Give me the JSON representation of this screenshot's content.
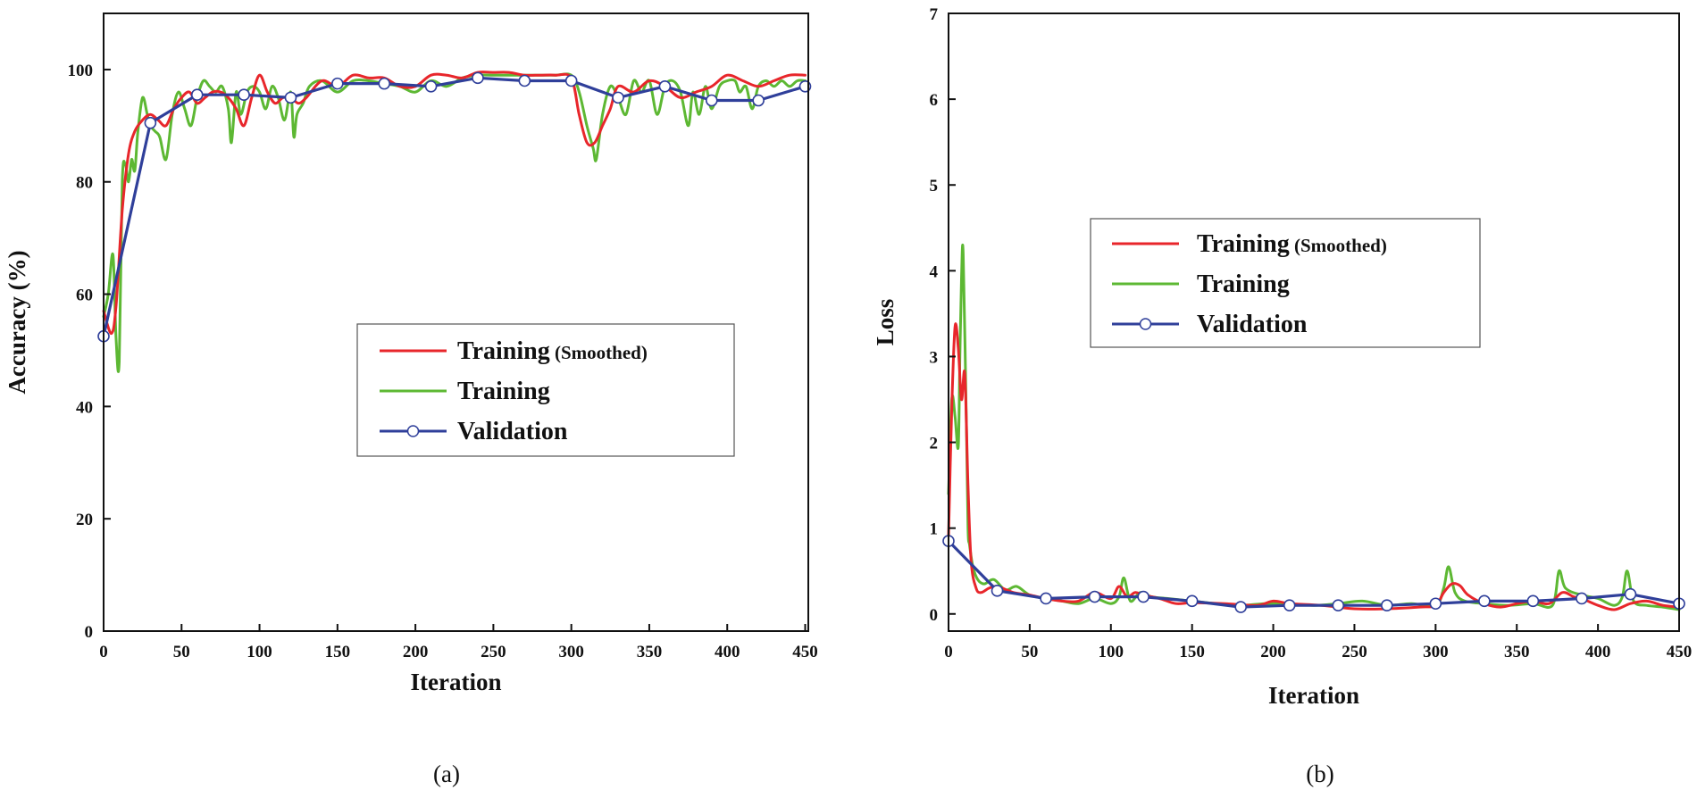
{
  "colors": {
    "smoothed": "#e8262b",
    "training": "#5db833",
    "validation": "#2f3f9a",
    "marker_fill": "#ffffff",
    "axis": "#111111"
  },
  "chart_data": [
    {
      "id": "a",
      "type": "line",
      "panel_label": "(a)",
      "xlabel": "Iteration",
      "ylabel": "Accuracy (%)",
      "xlim": [
        0,
        452
      ],
      "ylim": [
        0,
        110
      ],
      "xticks": [
        0,
        50,
        100,
        150,
        200,
        250,
        300,
        350,
        400,
        450
      ],
      "yticks": [
        0,
        20,
        40,
        60,
        80,
        100
      ],
      "legend": {
        "position": "center-right",
        "entries": [
          {
            "label": "Training",
            "suffix": " (Smoothed)",
            "series": "smoothed"
          },
          {
            "label": "Training",
            "suffix": "",
            "series": "training"
          },
          {
            "label": "Validation",
            "suffix": "",
            "series": "validation"
          }
        ]
      },
      "series": [
        {
          "name": "Training (Smoothed)",
          "key": "smoothed",
          "x": [
            0,
            5,
            8,
            12,
            16,
            20,
            25,
            30,
            35,
            40,
            45,
            50,
            55,
            60,
            65,
            70,
            75,
            80,
            85,
            90,
            95,
            100,
            105,
            110,
            115,
            120,
            125,
            130,
            140,
            150,
            160,
            170,
            180,
            190,
            200,
            210,
            220,
            230,
            240,
            250,
            260,
            270,
            280,
            290,
            300,
            305,
            310,
            315,
            320,
            325,
            330,
            340,
            350,
            360,
            370,
            380,
            390,
            400,
            410,
            420,
            430,
            440,
            450
          ],
          "y": [
            57,
            53,
            58,
            75,
            85,
            89,
            91,
            92,
            91,
            90,
            93,
            95,
            96,
            94,
            95,
            96,
            96,
            95,
            93,
            90,
            95,
            99,
            96,
            94,
            95,
            95,
            94,
            95,
            98,
            97,
            99,
            98.5,
            98.5,
            97,
            97,
            99,
            99,
            98.5,
            99.5,
            99.5,
            99.5,
            99,
            99,
            99,
            98.5,
            92,
            87,
            87,
            90,
            93,
            97,
            96,
            98,
            97,
            95,
            96,
            97,
            99,
            98,
            97,
            98,
            99,
            99
          ]
        },
        {
          "name": "Training",
          "key": "training",
          "x": [
            0,
            3,
            6,
            8,
            10,
            12,
            14,
            16,
            18,
            20,
            22,
            25,
            28,
            30,
            33,
            36,
            40,
            44,
            48,
            52,
            56,
            60,
            64,
            68,
            72,
            76,
            80,
            82,
            85,
            88,
            92,
            96,
            100,
            104,
            108,
            112,
            116,
            120,
            122,
            124,
            128,
            132,
            140,
            150,
            160,
            170,
            180,
            190,
            200,
            210,
            220,
            230,
            240,
            250,
            260,
            270,
            280,
            290,
            300,
            305,
            310,
            314,
            316,
            320,
            325,
            330,
            335,
            340,
            345,
            350,
            355,
            360,
            365,
            370,
            375,
            378,
            382,
            386,
            390,
            395,
            400,
            405,
            408,
            412,
            416,
            420,
            425,
            430,
            435,
            440,
            445,
            450
          ],
          "y": [
            56,
            60,
            67,
            52,
            48,
            80,
            83,
            80,
            84,
            82,
            89,
            95,
            92,
            90,
            89,
            88,
            84,
            92,
            96,
            93,
            90,
            95,
            98,
            97,
            96,
            97,
            93,
            87,
            96,
            92,
            96,
            97,
            96,
            93,
            97,
            95,
            91,
            96,
            88,
            92,
            94,
            97,
            98,
            96,
            98,
            98,
            97.5,
            97,
            96,
            98,
            97,
            98.5,
            99,
            99,
            99,
            99,
            99,
            99,
            99,
            96,
            90,
            86,
            84,
            92,
            97,
            95,
            92,
            98,
            96,
            98,
            92,
            97,
            98,
            96,
            90,
            96,
            92,
            97,
            93,
            97,
            98,
            98,
            96,
            97,
            93,
            97,
            98,
            97,
            98,
            97,
            98,
            98
          ]
        },
        {
          "name": "Validation",
          "key": "validation",
          "x": [
            0,
            30,
            60,
            90,
            120,
            150,
            180,
            210,
            240,
            270,
            300,
            330,
            360,
            390,
            420,
            450
          ],
          "y": [
            52.5,
            90.5,
            95.5,
            95.5,
            95,
            97.5,
            97.5,
            97,
            98.5,
            98,
            98,
            95,
            97,
            94.5,
            94.5,
            97
          ]
        }
      ]
    },
    {
      "id": "b",
      "type": "line",
      "panel_label": "(b)",
      "xlabel": "Iteration",
      "ylabel": "Loss",
      "xlim": [
        0,
        450
      ],
      "ylim": [
        -0.2,
        7
      ],
      "xticks": [
        0,
        50,
        100,
        150,
        200,
        250,
        300,
        350,
        400,
        450
      ],
      "yticks": [
        0,
        1,
        2,
        3,
        4,
        5,
        6,
        7
      ],
      "legend": {
        "position": "center",
        "entries": [
          {
            "label": "Training",
            "suffix": " (Smoothed)",
            "series": "smoothed"
          },
          {
            "label": "Training",
            "suffix": "",
            "series": "training"
          },
          {
            "label": "Validation",
            "suffix": "",
            "series": "validation"
          }
        ]
      },
      "series": [
        {
          "name": "Training (Smoothed)",
          "key": "smoothed",
          "x": [
            0,
            2,
            4,
            6,
            8,
            10,
            12,
            14,
            17,
            20,
            25,
            30,
            40,
            50,
            60,
            70,
            80,
            90,
            100,
            105,
            110,
            115,
            120,
            130,
            140,
            150,
            170,
            190,
            200,
            210,
            230,
            250,
            270,
            290,
            300,
            305,
            310,
            315,
            320,
            330,
            340,
            350,
            360,
            370,
            378,
            385,
            390,
            400,
            410,
            420,
            430,
            440,
            450
          ],
          "y": [
            0.9,
            2.4,
            3.35,
            3.1,
            2.5,
            2.8,
            1.5,
            0.6,
            0.3,
            0.25,
            0.3,
            0.32,
            0.25,
            0.22,
            0.18,
            0.15,
            0.15,
            0.25,
            0.18,
            0.32,
            0.2,
            0.25,
            0.22,
            0.18,
            0.12,
            0.13,
            0.12,
            0.1,
            0.15,
            0.12,
            0.1,
            0.06,
            0.06,
            0.08,
            0.1,
            0.25,
            0.35,
            0.33,
            0.22,
            0.12,
            0.08,
            0.12,
            0.15,
            0.12,
            0.25,
            0.2,
            0.18,
            0.1,
            0.05,
            0.12,
            0.15,
            0.1,
            0.08
          ]
        },
        {
          "name": "Training",
          "key": "training",
          "x": [
            0,
            2,
            4,
            6,
            7,
            8,
            9,
            11,
            12,
            13,
            15,
            18,
            22,
            28,
            35,
            42,
            50,
            60,
            70,
            80,
            90,
            100,
            105,
            108,
            112,
            118,
            125,
            135,
            150,
            165,
            180,
            195,
            210,
            225,
            240,
            255,
            270,
            285,
            300,
            305,
            308,
            312,
            318,
            330,
            345,
            360,
            372,
            376,
            380,
            390,
            400,
            410,
            415,
            418,
            422,
            430,
            440,
            450
          ],
          "y": [
            1.4,
            2.5,
            2.3,
            1.95,
            3.0,
            3.9,
            4.2,
            2.2,
            1.0,
            0.8,
            0.55,
            0.4,
            0.35,
            0.4,
            0.28,
            0.32,
            0.22,
            0.18,
            0.15,
            0.12,
            0.18,
            0.12,
            0.2,
            0.42,
            0.15,
            0.25,
            0.2,
            0.18,
            0.15,
            0.12,
            0.1,
            0.12,
            0.12,
            0.1,
            0.12,
            0.15,
            0.1,
            0.12,
            0.1,
            0.3,
            0.55,
            0.25,
            0.15,
            0.12,
            0.1,
            0.12,
            0.1,
            0.5,
            0.3,
            0.22,
            0.18,
            0.1,
            0.2,
            0.5,
            0.15,
            0.1,
            0.08,
            0.05
          ]
        },
        {
          "name": "Validation",
          "key": "validation",
          "x": [
            0,
            30,
            60,
            90,
            120,
            150,
            180,
            210,
            240,
            270,
            300,
            330,
            360,
            390,
            420,
            450
          ],
          "y": [
            0.85,
            0.27,
            0.18,
            0.2,
            0.2,
            0.15,
            0.08,
            0.1,
            0.1,
            0.1,
            0.12,
            0.15,
            0.15,
            0.18,
            0.23,
            0.12
          ]
        }
      ]
    }
  ]
}
